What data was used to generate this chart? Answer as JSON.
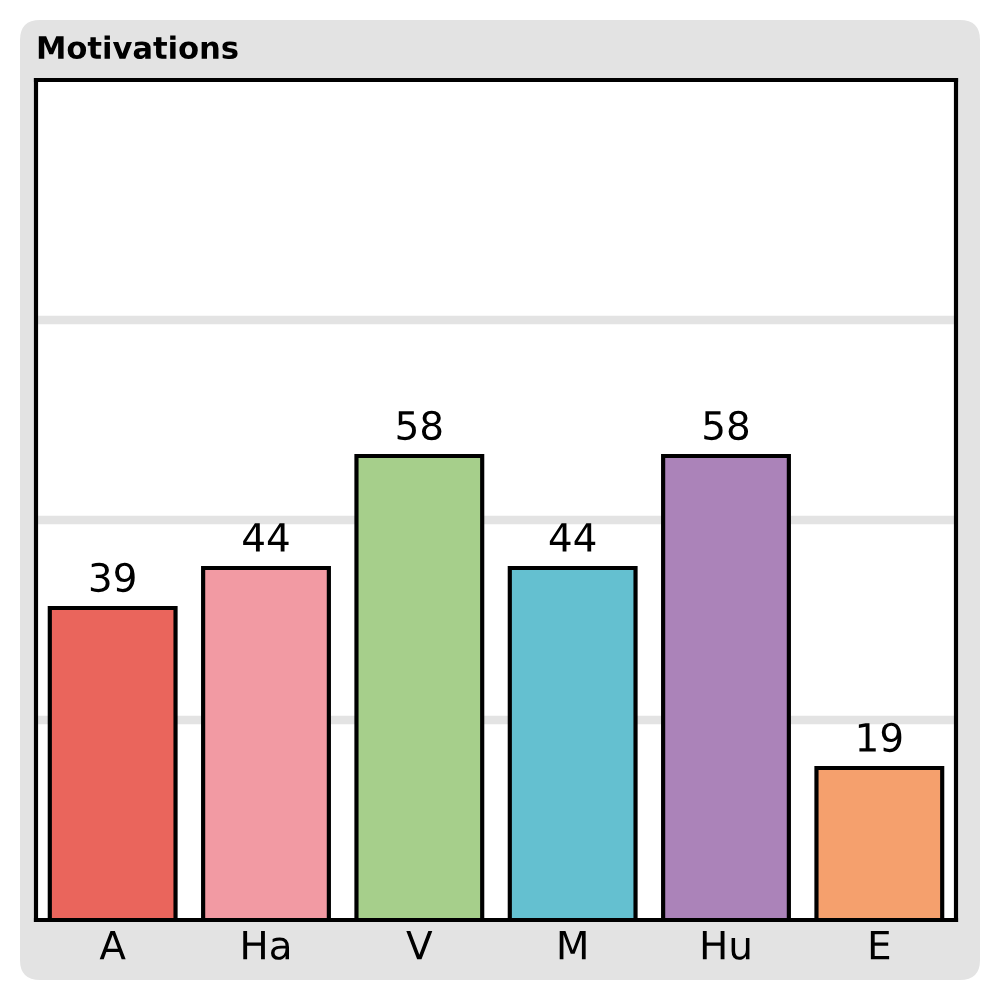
{
  "chart_data": {
    "type": "bar",
    "title": "Motivations",
    "categories": [
      "A",
      "Ha",
      "V",
      "M",
      "Hu",
      "E"
    ],
    "values": [
      39,
      44,
      58,
      44,
      58,
      19
    ],
    "colors": [
      "#ea655c",
      "#f29aa3",
      "#a6cf8b",
      "#64c0d0",
      "#ab83b9",
      "#f5a06d"
    ],
    "ylim": [
      0,
      105
    ],
    "yticks": [
      {
        "value": 25,
        "label": null
      },
      {
        "value": 50,
        "label": null
      },
      {
        "value": 75,
        "label": null
      }
    ],
    "grid": "y",
    "data_labels": true
  }
}
